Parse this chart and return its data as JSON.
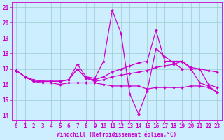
{
  "xlabel": "Windchill (Refroidissement éolien,°C)",
  "xlim": [
    -0.5,
    23.5
  ],
  "ylim": [
    13.7,
    21.3
  ],
  "yticks": [
    14,
    15,
    16,
    17,
    18,
    19,
    20,
    21
  ],
  "xticks": [
    0,
    1,
    2,
    3,
    4,
    5,
    6,
    7,
    8,
    9,
    10,
    11,
    12,
    13,
    14,
    15,
    16,
    17,
    18,
    19,
    20,
    21,
    22,
    23
  ],
  "background_color": "#cceeff",
  "grid_color": "#99cccc",
  "line_color": "#cc00cc",
  "series": {
    "line1": {
      "x": [
        0,
        1,
        2,
        3,
        4,
        5,
        6,
        7,
        8,
        9,
        10,
        11,
        12,
        13,
        14,
        15,
        16,
        17,
        18,
        19,
        20,
        21,
        22,
        23
      ],
      "y": [
        16.9,
        16.5,
        16.2,
        16.1,
        16.1,
        16.0,
        16.1,
        16.1,
        16.1,
        16.1,
        16.0,
        15.9,
        15.9,
        15.9,
        15.9,
        15.7,
        15.8,
        15.8,
        15.8,
        15.8,
        15.9,
        15.9,
        15.8,
        15.5
      ]
    },
    "line2": {
      "x": [
        0,
        1,
        2,
        3,
        4,
        5,
        6,
        7,
        8,
        9,
        10,
        11,
        12,
        13,
        14,
        15,
        16,
        17,
        18,
        19,
        20,
        21,
        22,
        23
      ],
      "y": [
        16.9,
        16.5,
        16.2,
        16.2,
        16.2,
        16.2,
        16.3,
        17.3,
        16.5,
        16.4,
        17.5,
        20.8,
        19.3,
        15.4,
        14.1,
        15.6,
        18.3,
        17.8,
        17.4,
        17.0,
        17.0,
        16.1,
        15.9,
        15.5
      ]
    },
    "line3": {
      "x": [
        0,
        1,
        2,
        3,
        4,
        5,
        6,
        7,
        8,
        9,
        10,
        11,
        12,
        13,
        14,
        15,
        16,
        17,
        18,
        19,
        20,
        21,
        22,
        23
      ],
      "y": [
        16.9,
        16.5,
        16.2,
        16.2,
        16.2,
        16.2,
        16.3,
        17.0,
        16.4,
        16.2,
        16.3,
        16.5,
        16.6,
        16.7,
        16.8,
        16.9,
        17.1,
        17.2,
        17.3,
        17.5,
        17.0,
        17.0,
        16.9,
        16.8
      ]
    },
    "line4": {
      "x": [
        0,
        1,
        2,
        3,
        4,
        5,
        6,
        7,
        8,
        9,
        10,
        11,
        12,
        13,
        14,
        15,
        16,
        17,
        18,
        19,
        20,
        21,
        22,
        23
      ],
      "y": [
        16.9,
        16.5,
        16.3,
        16.2,
        16.2,
        16.2,
        16.3,
        17.0,
        16.4,
        16.3,
        16.5,
        16.8,
        17.0,
        17.2,
        17.4,
        17.5,
        19.5,
        17.5,
        17.5,
        17.5,
        17.1,
        17.0,
        16.0,
        15.8
      ]
    }
  },
  "tick_fontsize": 5.5,
  "xlabel_fontsize": 5.5,
  "marker_size": 2.0,
  "linewidth": 0.9
}
